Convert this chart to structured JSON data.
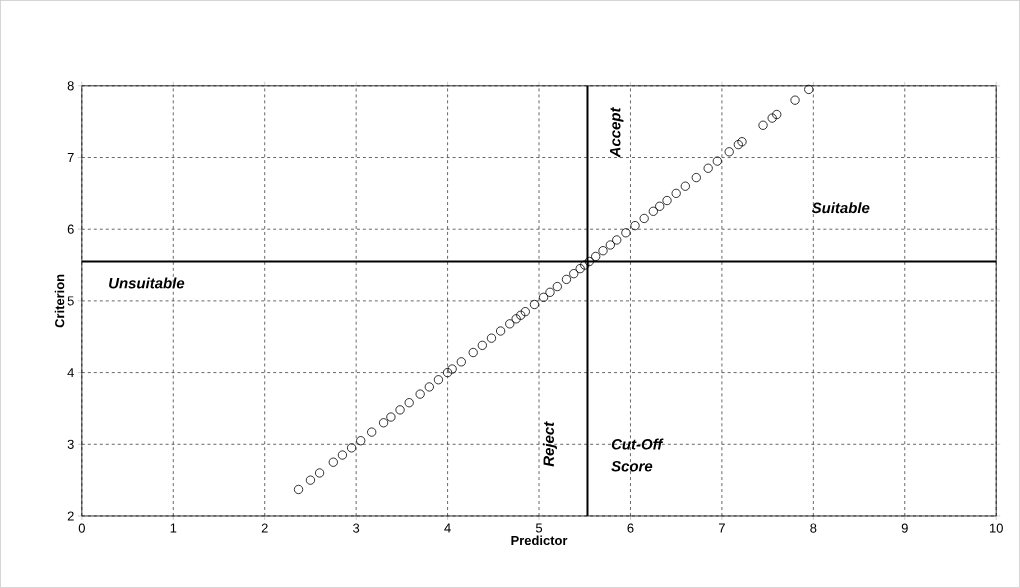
{
  "chart_data": {
    "type": "scatter",
    "xlabel": "Predictor",
    "ylabel": "Criterion",
    "xlim": [
      0,
      10
    ],
    "ylim": [
      2,
      8
    ],
    "xticks": [
      0,
      1,
      2,
      3,
      4,
      5,
      6,
      7,
      8,
      9,
      10
    ],
    "yticks": [
      2,
      3,
      4,
      5,
      6,
      7,
      8
    ],
    "grid": true,
    "marker": "circle",
    "series": [
      {
        "color": "#000000",
        "x": [
          2.37,
          2.5,
          2.6,
          2.75,
          2.85,
          2.95,
          3.05,
          3.17,
          3.3,
          3.38,
          3.48,
          3.58,
          3.7,
          3.8,
          3.9,
          4.0,
          4.05,
          4.15,
          4.28,
          4.38,
          4.48,
          4.58,
          4.68,
          4.75,
          4.8,
          4.85,
          4.95,
          5.05,
          5.12,
          5.2,
          5.3,
          5.38,
          5.45,
          5.5,
          5.55,
          5.62,
          5.7,
          5.78,
          5.85,
          5.95,
          6.05,
          6.15,
          6.25,
          6.32,
          6.4,
          6.5,
          6.6,
          6.72,
          6.85,
          6.95,
          7.08,
          7.18,
          7.22,
          7.45,
          7.55,
          7.6,
          7.8,
          7.95
        ],
        "values": [
          2.37,
          2.5,
          2.6,
          2.75,
          2.85,
          2.95,
          3.05,
          3.17,
          3.3,
          3.38,
          3.48,
          3.58,
          3.7,
          3.8,
          3.9,
          4.0,
          4.05,
          4.15,
          4.28,
          4.38,
          4.48,
          4.58,
          4.68,
          4.75,
          4.8,
          4.85,
          4.95,
          5.05,
          5.12,
          5.2,
          5.3,
          5.38,
          5.45,
          5.5,
          5.55,
          5.62,
          5.7,
          5.78,
          5.85,
          5.95,
          6.05,
          6.15,
          6.25,
          6.32,
          6.4,
          6.5,
          6.6,
          6.72,
          6.85,
          6.95,
          7.08,
          7.18,
          7.22,
          7.45,
          7.55,
          7.6,
          7.8,
          7.95
        ]
      }
    ],
    "ref_lines": [
      {
        "axis": "x",
        "value": 5.53
      },
      {
        "axis": "y",
        "value": 5.55
      }
    ],
    "annotations": [
      "Accept",
      "Suitable",
      "Unsuitable",
      "Reject",
      "Cut-Off Score"
    ]
  }
}
